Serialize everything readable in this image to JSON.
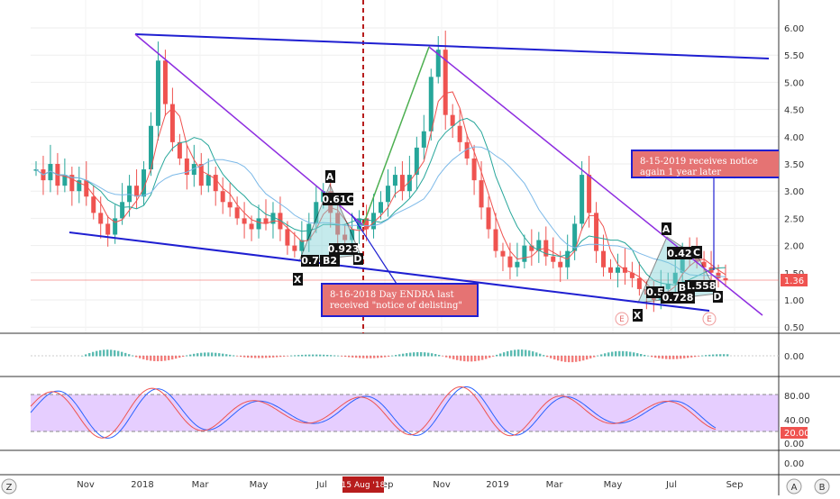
{
  "chart_data": {
    "type": "line",
    "price": {
      "y_ticks": [
        "6.00",
        "5.50",
        "5.00",
        "4.50",
        "4.00",
        "3.50",
        "3.00",
        "2.50",
        "2.00",
        "1.50",
        "1.00",
        "0.50"
      ],
      "last_price": "1.36",
      "close_series": [
        3.4,
        3.2,
        3.5,
        3.1,
        3.3,
        3.0,
        3.2,
        2.9,
        2.6,
        2.4,
        2.2,
        2.5,
        2.8,
        3.1,
        2.9,
        3.4,
        4.2,
        5.4,
        4.6,
        3.9,
        3.6,
        3.3,
        3.5,
        3.1,
        3.3,
        3.0,
        2.8,
        2.7,
        2.5,
        2.4,
        2.3,
        2.5,
        2.4,
        2.6,
        2.3,
        2.0,
        1.9,
        2.1,
        2.4,
        2.8,
        3.0,
        2.6,
        2.2,
        2.1,
        2.3,
        2.5,
        2.3,
        2.6,
        2.8,
        3.1,
        3.3,
        3.0,
        3.3,
        3.8,
        4.1,
        5.1,
        5.6,
        4.4,
        4.2,
        3.9,
        3.6,
        3.2,
        2.7,
        2.3,
        1.9,
        1.8,
        1.6,
        1.7,
        2.0,
        1.9,
        2.1,
        1.8,
        1.7,
        1.6,
        1.9,
        2.4,
        3.3,
        2.6,
        1.9,
        1.6,
        1.5,
        1.6,
        1.5,
        1.4,
        1.2,
        1.1,
        1.0,
        1.2,
        1.3,
        1.5,
        1.9,
        1.8,
        1.7,
        1.6,
        1.5,
        1.4,
        1.36
      ],
      "annotations": [
        "0.61C",
        "0.923",
        "0.7",
        "B2",
        "D",
        "0.42",
        "C",
        "0.5",
        "0.728",
        "1.558",
        "B",
        "D"
      ],
      "pattern_labels": [
        "A",
        "X",
        "A",
        "X",
        "D"
      ],
      "event_markers": [
        "E",
        "E"
      ]
    },
    "notes": [
      "8-16-2018 Day ENDRA last received \"notice of delisting\"",
      "8-15-2019 receives notice again 1 year later"
    ],
    "macd": {
      "y_tick": "0.00"
    },
    "stoch": {
      "y_ticks": [
        "80.00",
        "40.00",
        "20.00",
        "0.00"
      ],
      "band": [
        20,
        80
      ]
    },
    "bottom_pane": {
      "y_tick": "0.00"
    },
    "x_ticks": [
      "Nov",
      "2018",
      "Mar",
      "May",
      "Jul",
      "Aug",
      "Sep",
      "Nov",
      "2019",
      "Mar",
      "May",
      "Jul",
      "Sep"
    ],
    "x_highlight": "15 Aug '18",
    "colors": {
      "bull": "#26a69a",
      "bear": "#ef5350",
      "channel": "#1f1fd1",
      "trend": "#8e2de0",
      "band": "#e2c5ff"
    }
  },
  "corner_buttons": {
    "left": "Z",
    "right_a": "A",
    "right_b": "B"
  }
}
